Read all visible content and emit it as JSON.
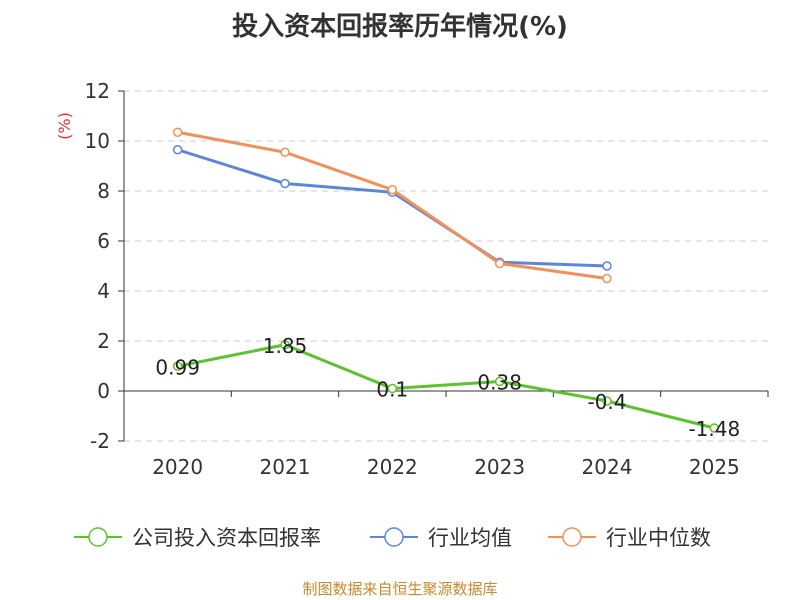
{
  "chart_data": {
    "type": "line",
    "title": "投入资本回报率历年情况(%)",
    "ylabel": "(%)",
    "xlabel": "",
    "categories": [
      "2020",
      "2021",
      "2022",
      "2023",
      "2024",
      "2025"
    ],
    "ylim": [
      -2,
      12
    ],
    "yticks": [
      -2,
      0,
      2,
      4,
      6,
      8,
      10,
      12
    ],
    "grid": true,
    "legend_position": "bottom",
    "series": [
      {
        "name": "公司投入资本回报率",
        "color": "#5cc230",
        "values": [
          0.99,
          1.85,
          0.1,
          0.38,
          -0.4,
          -1.48
        ],
        "labels": [
          "0.99",
          "1.85",
          "0.1",
          "0.38",
          "-0.4",
          "-1.48"
        ]
      },
      {
        "name": "行业均值",
        "color": "#5b86d9",
        "values": [
          9.65,
          8.3,
          7.95,
          5.15,
          5.0,
          null
        ]
      },
      {
        "name": "行业中位数",
        "color": "#f0905a",
        "values": [
          10.35,
          9.55,
          8.05,
          5.1,
          4.5,
          null
        ]
      }
    ]
  },
  "source": "制图数据来自恒生聚源数据库"
}
